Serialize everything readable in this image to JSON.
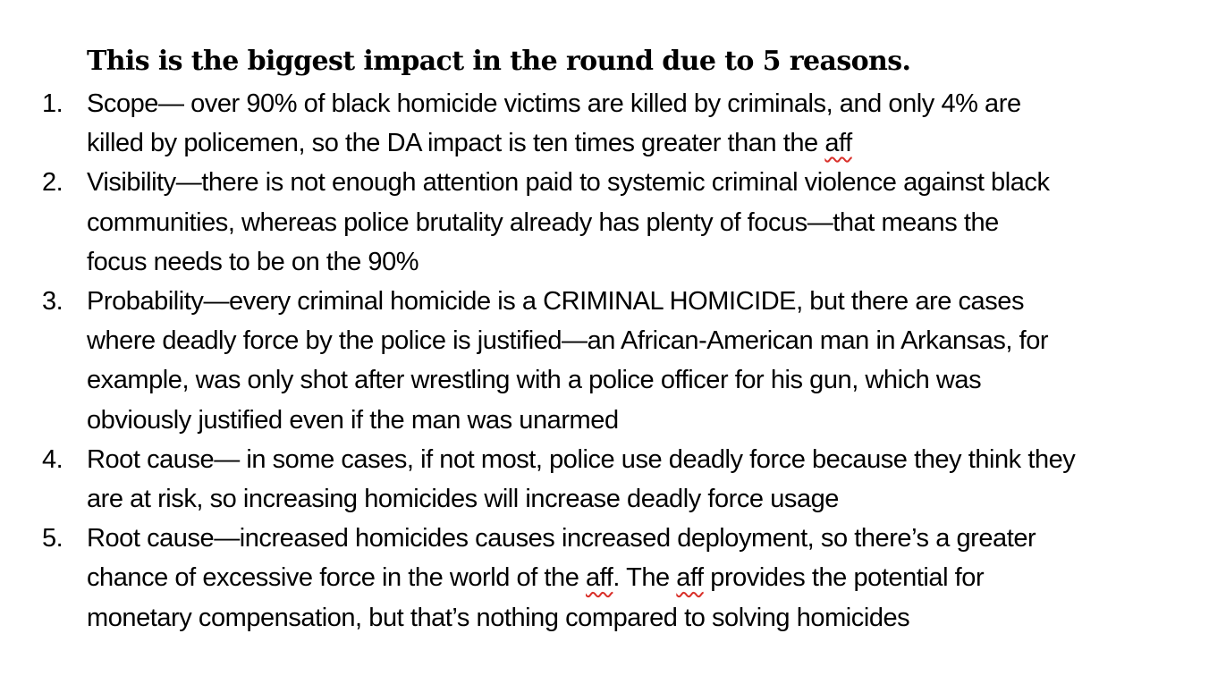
{
  "heading": "This is the biggest impact in the round due to 5 reasons.",
  "items": [
    {
      "num": "1.",
      "lines": [
        "Scope— over 90% of black homicide victims are killed by criminals, and only 4% are",
        "killed by policemen, so the DA impact is ten times greater than the ",
        "aff"
      ]
    },
    {
      "num": "2.",
      "lines": [
        "Visibility—there is not enough attention paid to systemic criminal violence against black",
        "communities, whereas police brutality already has plenty of focus—that means the",
        "focus needs to be on the 90%"
      ]
    },
    {
      "num": "3.",
      "lines": [
        "Probability—every criminal homicide is a CRIMINAL HOMICIDE, but there are cases",
        "where deadly force by the police is justified—an African-American man in Arkansas, for",
        "example, was only shot after wrestling with a police officer for his gun, which was",
        "obviously justified even if the man was unarmed"
      ]
    },
    {
      "num": "4.",
      "lines": [
        "Root cause— in some cases, if not most, police use deadly force because they think they",
        "are at risk, so increasing homicides will increase deadly force usage"
      ]
    },
    {
      "num": "5.",
      "lines": [
        "Root cause—increased homicides causes increased deployment, so there’s a greater",
        "chance of excessive force in the world of the ",
        "aff",
        ". The ",
        "aff",
        " provides the potential for",
        "monetary compensation, but that’s nothing compared to solving homicides"
      ]
    }
  ]
}
